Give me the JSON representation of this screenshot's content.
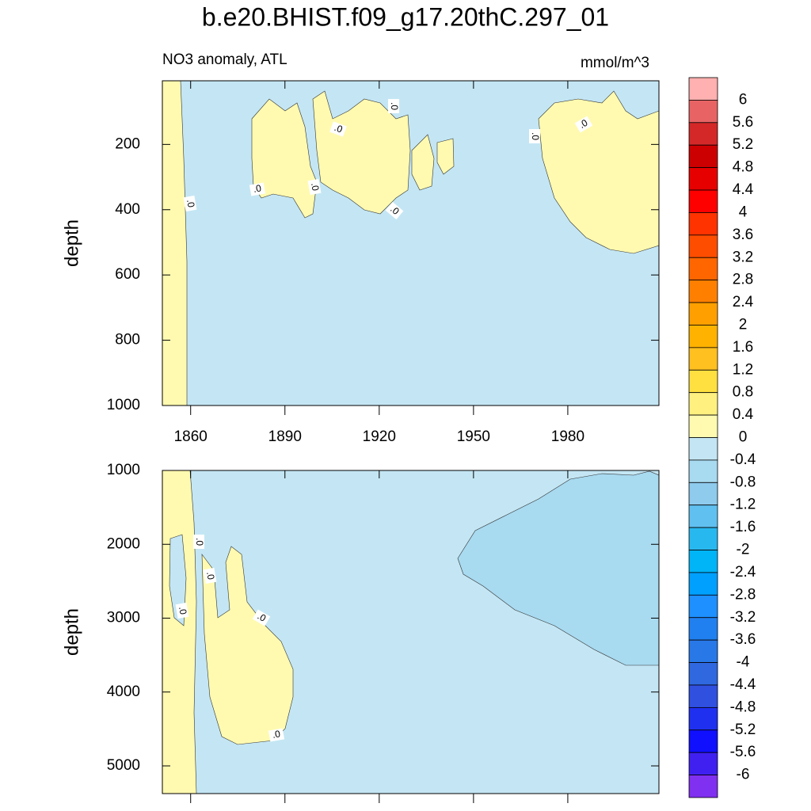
{
  "chart_data": {
    "type": "contour",
    "title": "b.e20.BHIST.f09_g17.20thC.297_01",
    "subtitle_left": "NO3 anomaly, ATL",
    "subtitle_right": "mmol/m^3",
    "contour_label": ".0",
    "xlim": [
      1851,
      2009
    ],
    "xticks": [
      1860,
      1890,
      1920,
      1950,
      1980
    ],
    "panels": [
      {
        "ylabel": "depth",
        "ylim": [
          5,
          1000
        ],
        "yticks": [
          200,
          400,
          600,
          800,
          1000
        ]
      },
      {
        "ylabel": "depth",
        "ylim": [
          1000,
          5375
        ],
        "yticks": [
          1000,
          2000,
          3000,
          4000,
          5000
        ]
      }
    ],
    "colorbar": {
      "levels": [
        6,
        5.6,
        5.2,
        4.8,
        4.4,
        4,
        3.6,
        3.2,
        2.8,
        2.4,
        2,
        1.6,
        1.2,
        0.8,
        0.4,
        0,
        -0.4,
        -0.8,
        -1.2,
        -1.6,
        -2,
        -2.4,
        -2.8,
        -3.2,
        -3.6,
        -4,
        -4.4,
        -4.8,
        -5.2,
        -5.6,
        -6
      ],
      "colors": [
        "#ffb0b0",
        "#e86464",
        "#d42828",
        "#cc0000",
        "#e60000",
        "#ff0000",
        "#ff3300",
        "#ff4d00",
        "#ff6600",
        "#ff8000",
        "#ffa000",
        "#ffb300",
        "#ffc020",
        "#ffe040",
        "#fff080",
        "#fffab0",
        "#c4e6f4",
        "#a8daf0",
        "#8ecbed",
        "#60c0f0",
        "#28b8f0",
        "#00b4f8",
        "#00a0ff",
        "#1e90ff",
        "#2080f0",
        "#2878e8",
        "#3068e0",
        "#3050e0",
        "#2030f0",
        "#1010ff",
        "#4020f0",
        "#8030f0"
      ]
    }
  }
}
